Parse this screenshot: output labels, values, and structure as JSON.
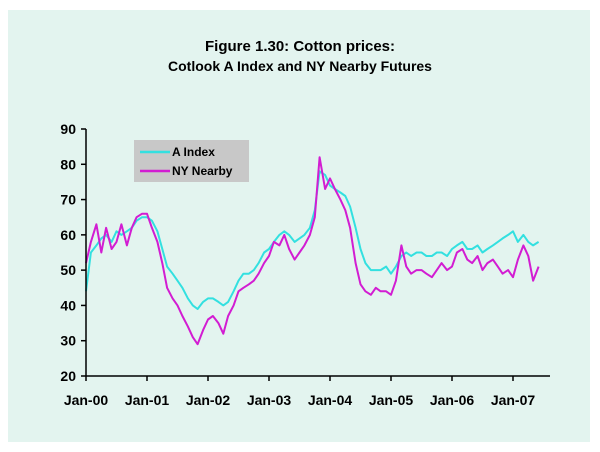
{
  "chart_data": {
    "type": "line",
    "title": "Figure 1.30: Cotton prices:",
    "subtitle": "Cotlook A Index and NY Nearby Futures",
    "xlabel": "",
    "ylabel": "",
    "ylim": [
      20,
      90
    ],
    "yticks": [
      20,
      30,
      40,
      50,
      60,
      70,
      80,
      90
    ],
    "xticks": [
      "Jan-00",
      "Jan-01",
      "Jan-02",
      "Jan-03",
      "Jan-04",
      "Jan-05",
      "Jan-06",
      "Jan-07"
    ],
    "xlim": [
      2000.0,
      2007.42
    ],
    "legend": {
      "placement": "top-left",
      "entries": [
        "A Index",
        "NY Nearby"
      ]
    },
    "grid": false,
    "series": [
      {
        "name": "A Index",
        "color": "#33e0e0",
        "x": [
          2000.0,
          2000.08,
          2000.17,
          2000.25,
          2000.33,
          2000.42,
          2000.5,
          2000.58,
          2000.67,
          2000.75,
          2000.83,
          2000.92,
          2001.0,
          2001.08,
          2001.17,
          2001.25,
          2001.33,
          2001.42,
          2001.5,
          2001.58,
          2001.67,
          2001.75,
          2001.83,
          2001.92,
          2002.0,
          2002.08,
          2002.17,
          2002.25,
          2002.33,
          2002.42,
          2002.5,
          2002.58,
          2002.67,
          2002.75,
          2002.83,
          2002.92,
          2003.0,
          2003.08,
          2003.17,
          2003.25,
          2003.33,
          2003.42,
          2003.5,
          2003.58,
          2003.67,
          2003.75,
          2003.83,
          2003.92,
          2004.0,
          2004.08,
          2004.17,
          2004.25,
          2004.33,
          2004.42,
          2004.5,
          2004.58,
          2004.67,
          2004.75,
          2004.83,
          2004.92,
          2005.0,
          2005.08,
          2005.17,
          2005.25,
          2005.33,
          2005.42,
          2005.5,
          2005.58,
          2005.67,
          2005.75,
          2005.83,
          2005.92,
          2006.0,
          2006.08,
          2006.17,
          2006.25,
          2006.33,
          2006.42,
          2006.5,
          2006.58,
          2006.67,
          2006.75,
          2006.83,
          2006.92,
          2007.0,
          2007.08,
          2007.17,
          2007.25,
          2007.33,
          2007.42
        ],
        "values": [
          44,
          55,
          57,
          59,
          60,
          58,
          61,
          60,
          61,
          62,
          64,
          65,
          65,
          64,
          61,
          56,
          51,
          49,
          47,
          45,
          42,
          40,
          39,
          41,
          42,
          42,
          41,
          40,
          41,
          44,
          47,
          49,
          49,
          50,
          52,
          55,
          56,
          58,
          60,
          61,
          60,
          58,
          59,
          60,
          62,
          67,
          78,
          77,
          74,
          73,
          72,
          71,
          68,
          62,
          56,
          52,
          50,
          50,
          50,
          51,
          49,
          51,
          54,
          55,
          54,
          55,
          55,
          54,
          54,
          55,
          55,
          54,
          56,
          57,
          58,
          56,
          56,
          57,
          55,
          56,
          57,
          58,
          59,
          60,
          61,
          58,
          60,
          58,
          57,
          58
        ]
      },
      {
        "name": "NY Nearby",
        "color": "#d21dd2",
        "x": [
          2000.0,
          2000.08,
          2000.17,
          2000.25,
          2000.33,
          2000.42,
          2000.5,
          2000.58,
          2000.67,
          2000.75,
          2000.83,
          2000.92,
          2001.0,
          2001.08,
          2001.17,
          2001.25,
          2001.33,
          2001.42,
          2001.5,
          2001.58,
          2001.67,
          2001.75,
          2001.83,
          2001.92,
          2002.0,
          2002.08,
          2002.17,
          2002.25,
          2002.33,
          2002.42,
          2002.5,
          2002.58,
          2002.67,
          2002.75,
          2002.83,
          2002.92,
          2003.0,
          2003.08,
          2003.17,
          2003.25,
          2003.33,
          2003.42,
          2003.5,
          2003.58,
          2003.67,
          2003.75,
          2003.83,
          2003.92,
          2004.0,
          2004.08,
          2004.17,
          2004.25,
          2004.33,
          2004.42,
          2004.5,
          2004.58,
          2004.67,
          2004.75,
          2004.83,
          2004.92,
          2005.0,
          2005.08,
          2005.17,
          2005.25,
          2005.33,
          2005.42,
          2005.5,
          2005.58,
          2005.67,
          2005.75,
          2005.83,
          2005.92,
          2006.0,
          2006.08,
          2006.17,
          2006.25,
          2006.33,
          2006.42,
          2006.5,
          2006.58,
          2006.67,
          2006.75,
          2006.83,
          2006.92,
          2007.0,
          2007.08,
          2007.17,
          2007.25,
          2007.33,
          2007.42
        ],
        "values": [
          52,
          58,
          63,
          55,
          62,
          56,
          58,
          63,
          57,
          62,
          65,
          66,
          66,
          62,
          58,
          52,
          45,
          42,
          40,
          37,
          34,
          31,
          29,
          33,
          36,
          37,
          35,
          32,
          37,
          40,
          44,
          45,
          46,
          47,
          49,
          52,
          54,
          58,
          57,
          60,
          56,
          53,
          55,
          57,
          60,
          65,
          82,
          73,
          76,
          73,
          70,
          67,
          62,
          52,
          46,
          44,
          43,
          45,
          44,
          44,
          43,
          47,
          57,
          51,
          49,
          50,
          50,
          49,
          48,
          50,
          52,
          50,
          51,
          55,
          56,
          53,
          52,
          54,
          50,
          52,
          53,
          51,
          49,
          50,
          48,
          53,
          57,
          54,
          47,
          51
        ]
      }
    ]
  }
}
